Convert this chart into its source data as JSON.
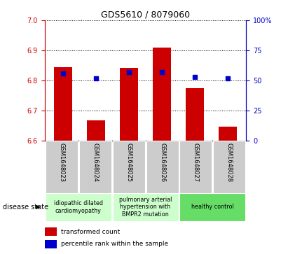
{
  "title": "GDS5610 / 8079060",
  "samples": [
    "GSM1648023",
    "GSM1648024",
    "GSM1648025",
    "GSM1648026",
    "GSM1648027",
    "GSM1648028"
  ],
  "transformed_count": [
    6.845,
    6.668,
    6.843,
    6.91,
    6.775,
    6.648
  ],
  "percentile_rank": [
    56,
    52,
    57,
    57,
    53,
    52
  ],
  "ylim_left": [
    6.6,
    7.0
  ],
  "ylim_right": [
    0,
    100
  ],
  "yticks_left": [
    6.6,
    6.7,
    6.8,
    6.9,
    7.0
  ],
  "yticks_right": [
    0,
    25,
    50,
    75,
    100
  ],
  "bar_color": "#cc0000",
  "dot_color": "#0000cc",
  "bar_bottom": 6.6,
  "ds_labels": [
    "idiopathic dilated\ncardiomyopathy",
    "pulmonary arterial\nhypertension with\nBMPR2 mutation",
    "healthy control"
  ],
  "ds_colors": [
    "#ccffcc",
    "#ccffcc",
    "#66dd66"
  ],
  "ds_ranges": [
    [
      0,
      1
    ],
    [
      2,
      3
    ],
    [
      4,
      5
    ]
  ],
  "legend_bar_label": "transformed count",
  "legend_dot_label": "percentile rank within the sample",
  "disease_state_label": "disease state",
  "background_color": "#ffffff",
  "tick_color_left": "#cc0000",
  "tick_color_right": "#0000cc",
  "sample_bg": "#cccccc"
}
